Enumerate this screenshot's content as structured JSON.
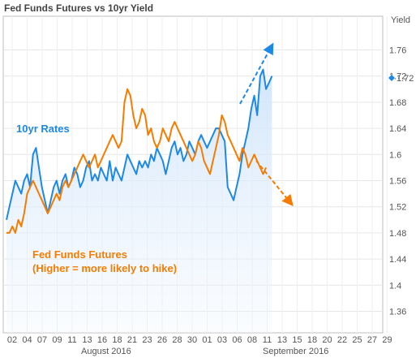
{
  "chart_data": {
    "type": "line",
    "title": "Fed Funds Futures vs 10yr Yield",
    "ylabel": "Yield",
    "ylim": [
      1.33,
      1.81
    ],
    "yticks": [
      "1.36",
      "1.4",
      "1.44",
      "1.48",
      "1.52",
      "1.56",
      "1.6",
      "1.64",
      "1.68",
      "1.72",
      "1.76"
    ],
    "x_tick_labels": [
      "02",
      "04",
      "07",
      "09",
      "11",
      "13",
      "16",
      "18",
      "21",
      "23",
      "26",
      "28",
      "30",
      "01",
      "03",
      "06",
      "08",
      "11",
      "13",
      "15",
      "18",
      "20",
      "22",
      "25",
      "27",
      "29"
    ],
    "month_labels": [
      "August 2016",
      "September 2016"
    ],
    "current_value_label": "1.72",
    "grid": true,
    "annotations": {
      "ten_year": "10yr Rates",
      "ffutures_line1": "Fed Funds Futures",
      "ffutures_line2": "(Higher = more likely to hike)"
    },
    "series": [
      {
        "key": "ten_year",
        "color": "#1e88e5",
        "x": [
          0,
          1,
          2,
          3,
          4,
          5,
          6,
          7,
          8,
          9,
          10,
          11,
          12,
          13,
          14,
          15,
          16,
          17,
          18,
          19,
          20,
          21,
          22,
          23,
          24,
          25,
          26,
          27,
          28,
          29,
          30,
          31,
          32,
          33,
          34,
          35,
          36,
          37,
          38,
          39,
          40,
          41,
          42,
          43,
          44,
          45,
          46,
          47,
          48,
          49,
          50,
          51,
          52,
          53,
          54,
          55,
          56,
          57,
          58,
          59,
          60,
          61,
          62,
          63,
          64,
          65,
          66,
          67,
          68,
          69,
          70,
          71,
          72,
          73,
          74,
          75,
          76,
          77,
          78,
          79,
          80,
          81,
          82,
          83,
          84,
          85,
          86,
          87,
          88,
          89,
          90
        ],
        "values": [
          1.5,
          1.52,
          1.54,
          1.56,
          1.55,
          1.54,
          1.56,
          1.57,
          1.55,
          1.6,
          1.61,
          1.58,
          1.55,
          1.53,
          1.51,
          1.53,
          1.55,
          1.56,
          1.54,
          1.56,
          1.57,
          1.55,
          1.56,
          1.58,
          1.57,
          1.55,
          1.56,
          1.58,
          1.59,
          1.56,
          1.57,
          1.56,
          1.58,
          1.57,
          1.56,
          1.59,
          1.56,
          1.58,
          1.57,
          1.56,
          1.58,
          1.6,
          1.59,
          1.58,
          1.57,
          1.59,
          1.58,
          1.59,
          1.58,
          1.6,
          1.59,
          1.61,
          1.6,
          1.59,
          1.57,
          1.59,
          1.61,
          1.62,
          1.6,
          1.61,
          1.59,
          1.6,
          1.62,
          1.61,
          1.6,
          1.62,
          1.63,
          1.62,
          1.61,
          1.62,
          1.63,
          1.64,
          1.64,
          1.63,
          1.62,
          1.55,
          1.54,
          1.53,
          1.55,
          1.57,
          1.6,
          1.62,
          1.64,
          1.67,
          1.69,
          1.66,
          1.72,
          1.73,
          1.7,
          1.71,
          1.72
        ]
      },
      {
        "key": "ffutures",
        "color": "#f57c00",
        "x": [
          0,
          1,
          2,
          3,
          4,
          5,
          6,
          7,
          8,
          9,
          10,
          11,
          12,
          13,
          14,
          15,
          16,
          17,
          18,
          19,
          20,
          21,
          22,
          23,
          24,
          25,
          26,
          27,
          28,
          29,
          30,
          31,
          32,
          33,
          34,
          35,
          36,
          37,
          38,
          39,
          40,
          41,
          42,
          43,
          44,
          45,
          46,
          47,
          48,
          49,
          50,
          51,
          52,
          53,
          54,
          55,
          56,
          57,
          58,
          59,
          60,
          61,
          62,
          63,
          64,
          65,
          66,
          67,
          68,
          69,
          70,
          71,
          72,
          73,
          74,
          75,
          76,
          77,
          78,
          79,
          80,
          81,
          82,
          83,
          84,
          85,
          86,
          87,
          88
        ],
        "values": [
          1.48,
          1.48,
          1.49,
          1.48,
          1.5,
          1.49,
          1.51,
          1.54,
          1.55,
          1.56,
          1.55,
          1.54,
          1.53,
          1.52,
          1.51,
          1.52,
          1.53,
          1.54,
          1.53,
          1.55,
          1.56,
          1.55,
          1.56,
          1.57,
          1.58,
          1.59,
          1.6,
          1.59,
          1.58,
          1.59,
          1.6,
          1.58,
          1.59,
          1.6,
          1.61,
          1.62,
          1.63,
          1.62,
          1.61,
          1.62,
          1.68,
          1.7,
          1.69,
          1.66,
          1.64,
          1.65,
          1.67,
          1.66,
          1.63,
          1.64,
          1.62,
          1.61,
          1.62,
          1.64,
          1.63,
          1.62,
          1.64,
          1.65,
          1.64,
          1.63,
          1.62,
          1.61,
          1.6,
          1.59,
          1.6,
          1.62,
          1.61,
          1.59,
          1.58,
          1.57,
          1.59,
          1.61,
          1.63,
          1.66,
          1.65,
          1.63,
          1.62,
          1.61,
          1.6,
          1.59,
          1.61,
          1.6,
          1.58,
          1.59,
          1.6,
          1.59,
          1.58,
          1.57,
          1.58
        ]
      }
    ]
  }
}
